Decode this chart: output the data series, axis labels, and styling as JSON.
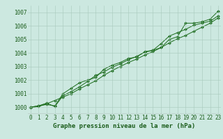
{
  "x": [
    0,
    1,
    2,
    3,
    4,
    5,
    6,
    7,
    8,
    9,
    10,
    11,
    12,
    13,
    14,
    15,
    16,
    17,
    18,
    19,
    20,
    21,
    22,
    23
  ],
  "series1": [
    1000.0,
    1000.1,
    1000.2,
    1000.1,
    1001.0,
    1001.4,
    1001.8,
    1002.0,
    1002.2,
    1002.8,
    1003.1,
    1003.3,
    1003.6,
    1003.7,
    1004.1,
    1004.2,
    1004.4,
    1005.0,
    1005.2,
    1006.2,
    1006.2,
    1006.3,
    1006.5,
    1007.1
  ],
  "series2": [
    999.95,
    1000.05,
    1000.25,
    1000.5,
    1000.75,
    1001.0,
    1001.35,
    1001.65,
    1001.95,
    1002.35,
    1002.7,
    1003.0,
    1003.3,
    1003.55,
    1003.85,
    1004.1,
    1004.4,
    1004.75,
    1005.05,
    1005.3,
    1005.6,
    1005.9,
    1006.2,
    1006.6
  ],
  "series3": [
    1000.0,
    1000.1,
    1000.3,
    1000.05,
    1000.85,
    1001.15,
    1001.5,
    1001.9,
    1002.35,
    1002.6,
    1002.95,
    1003.2,
    1003.5,
    1003.75,
    1004.05,
    1004.2,
    1004.7,
    1005.25,
    1005.5,
    1005.75,
    1006.05,
    1006.2,
    1006.35,
    1006.75
  ],
  "line_color": "#1a6b1a",
  "marker_color": "#1a6b1a",
  "bg_color": "#cce8e0",
  "grid_color": "#a8c8bc",
  "xlabel": "Graphe pression niveau de la mer (hPa)",
  "ylim": [
    999.5,
    1007.5
  ],
  "yticks": [
    1000,
    1001,
    1002,
    1003,
    1004,
    1005,
    1006,
    1007
  ],
  "xticks": [
    0,
    1,
    2,
    3,
    4,
    5,
    6,
    7,
    8,
    9,
    10,
    11,
    12,
    13,
    14,
    15,
    16,
    17,
    18,
    19,
    20,
    21,
    22,
    23
  ],
  "xlabel_fontsize": 6.5,
  "tick_fontsize": 5.5
}
